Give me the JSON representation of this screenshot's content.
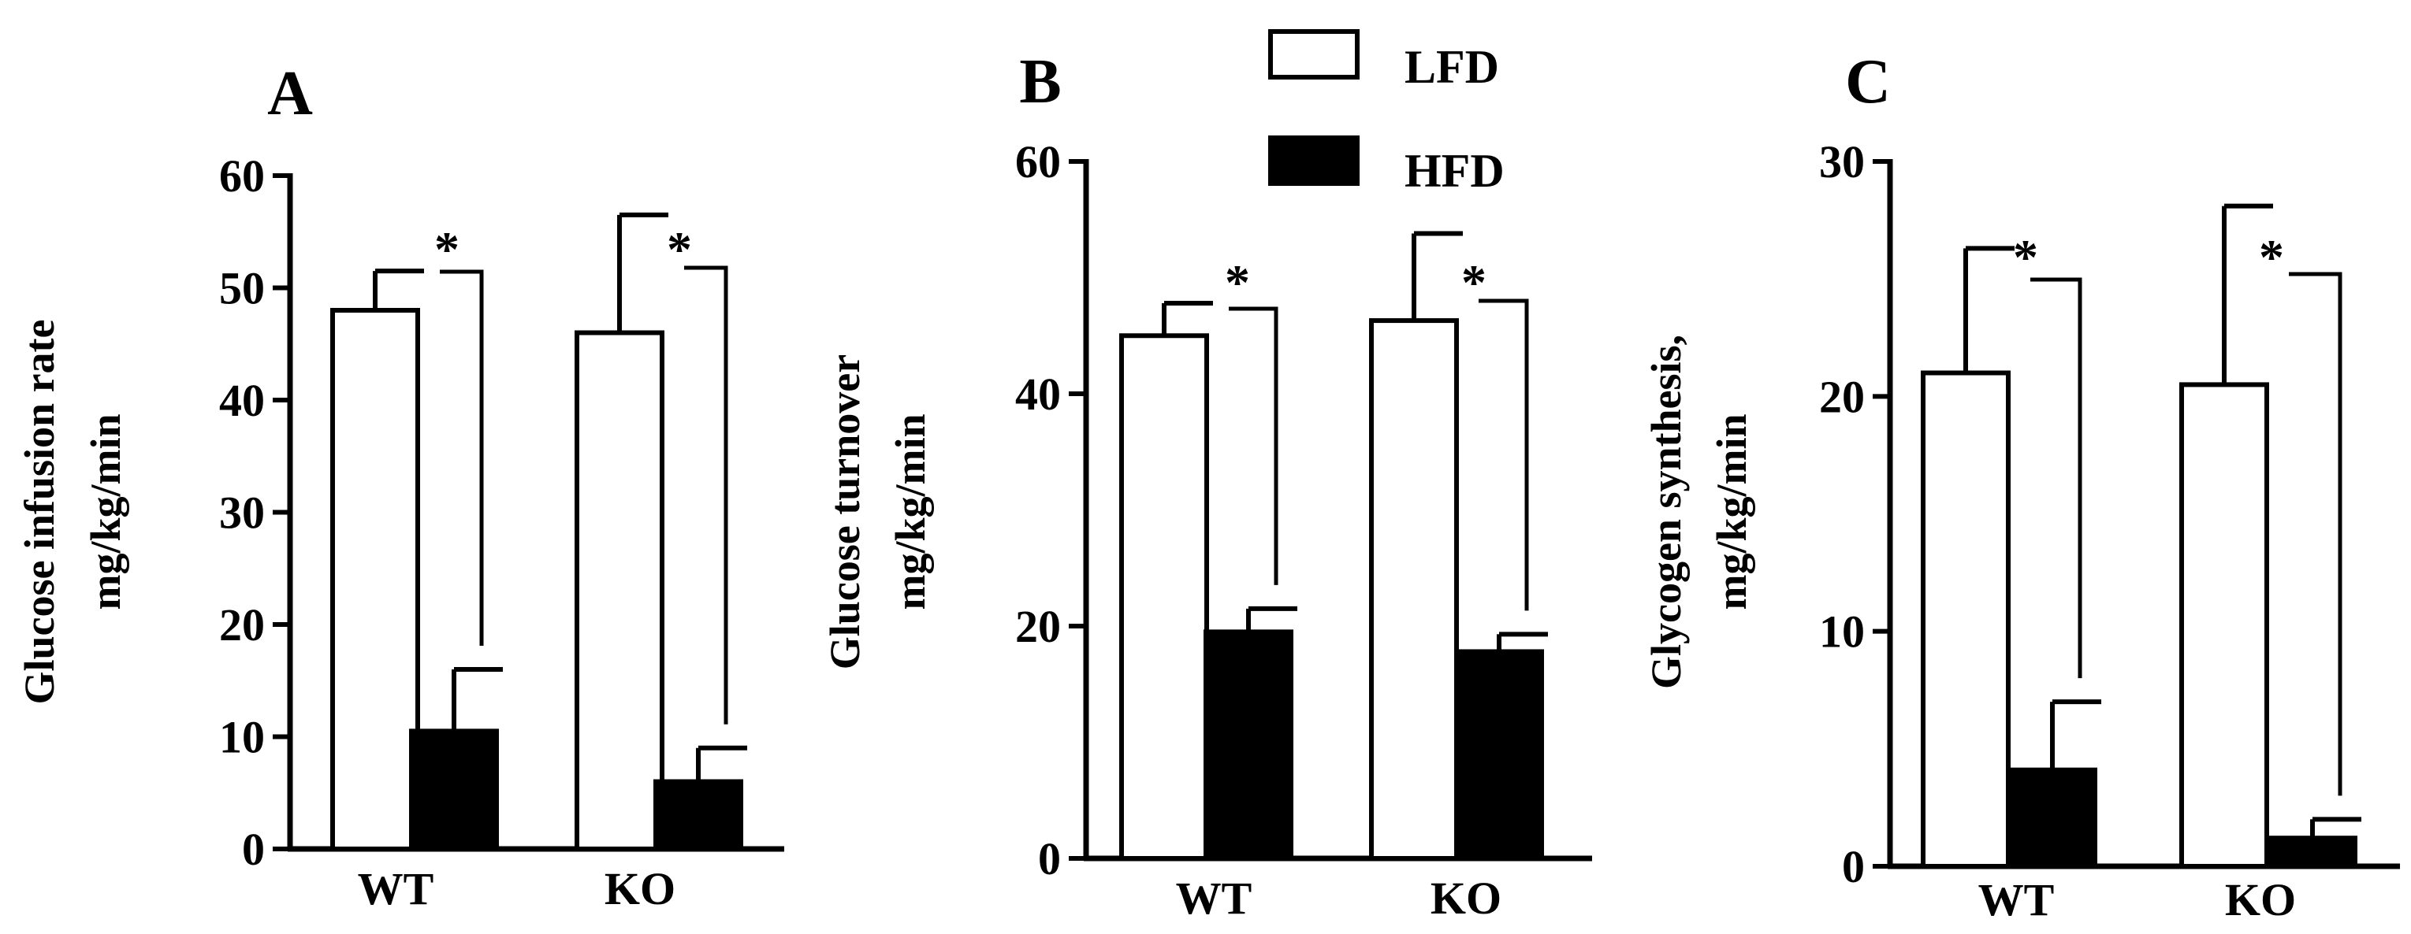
{
  "legend": {
    "entries": [
      {
        "label": "LFD",
        "fill": "#ffffff"
      },
      {
        "label": "HFD",
        "fill": "#000000"
      }
    ]
  },
  "colors": {
    "lfd": "#ffffff",
    "hfd": "#000000",
    "stroke": "#000000"
  },
  "chart_data": [
    {
      "type": "bar",
      "panel_label": "A",
      "ylabel": [
        "Glucose infusion rate",
        "mg/kg/min"
      ],
      "categories": [
        "WT",
        "KO"
      ],
      "ylim": [
        0,
        60
      ],
      "yticks": [
        "0",
        "10",
        "20",
        "30",
        "40",
        "50",
        "60"
      ],
      "series": [
        {
          "name": "LFD",
          "values": [
            48,
            46
          ],
          "errors": [
            3.5,
            10.5
          ]
        },
        {
          "name": "HFD",
          "values": [
            10.5,
            6
          ],
          "errors": [
            5.5,
            3
          ]
        }
      ],
      "significance": [
        "*",
        "*"
      ]
    },
    {
      "type": "bar",
      "panel_label": "B",
      "ylabel": [
        "Glucose turnover",
        "mg/kg/min"
      ],
      "categories": [
        "WT",
        "KO"
      ],
      "ylim": [
        0,
        60
      ],
      "yticks": [
        "0",
        "20",
        "40",
        "60"
      ],
      "series": [
        {
          "name": "LFD",
          "values": [
            45,
            46.3
          ],
          "errors": [
            2.8,
            7.5
          ]
        },
        {
          "name": "HFD",
          "values": [
            19.5,
            17.8
          ],
          "errors": [
            2,
            1.5
          ]
        }
      ],
      "significance": [
        "*",
        "*"
      ]
    },
    {
      "type": "bar",
      "panel_label": "C",
      "ylabel": [
        "Glycogen synthesis,",
        "mg/kg/min"
      ],
      "categories": [
        "WT",
        "KO"
      ],
      "ylim": [
        0,
        30
      ],
      "yticks": [
        "0",
        "10",
        "20",
        "30"
      ],
      "series": [
        {
          "name": "LFD",
          "values": [
            21,
            20.5
          ],
          "errors": [
            5.3,
            7.6
          ]
        },
        {
          "name": "HFD",
          "values": [
            4.1,
            1.2
          ],
          "errors": [
            2.9,
            0.8
          ]
        }
      ],
      "significance": [
        "*",
        "*"
      ]
    }
  ]
}
